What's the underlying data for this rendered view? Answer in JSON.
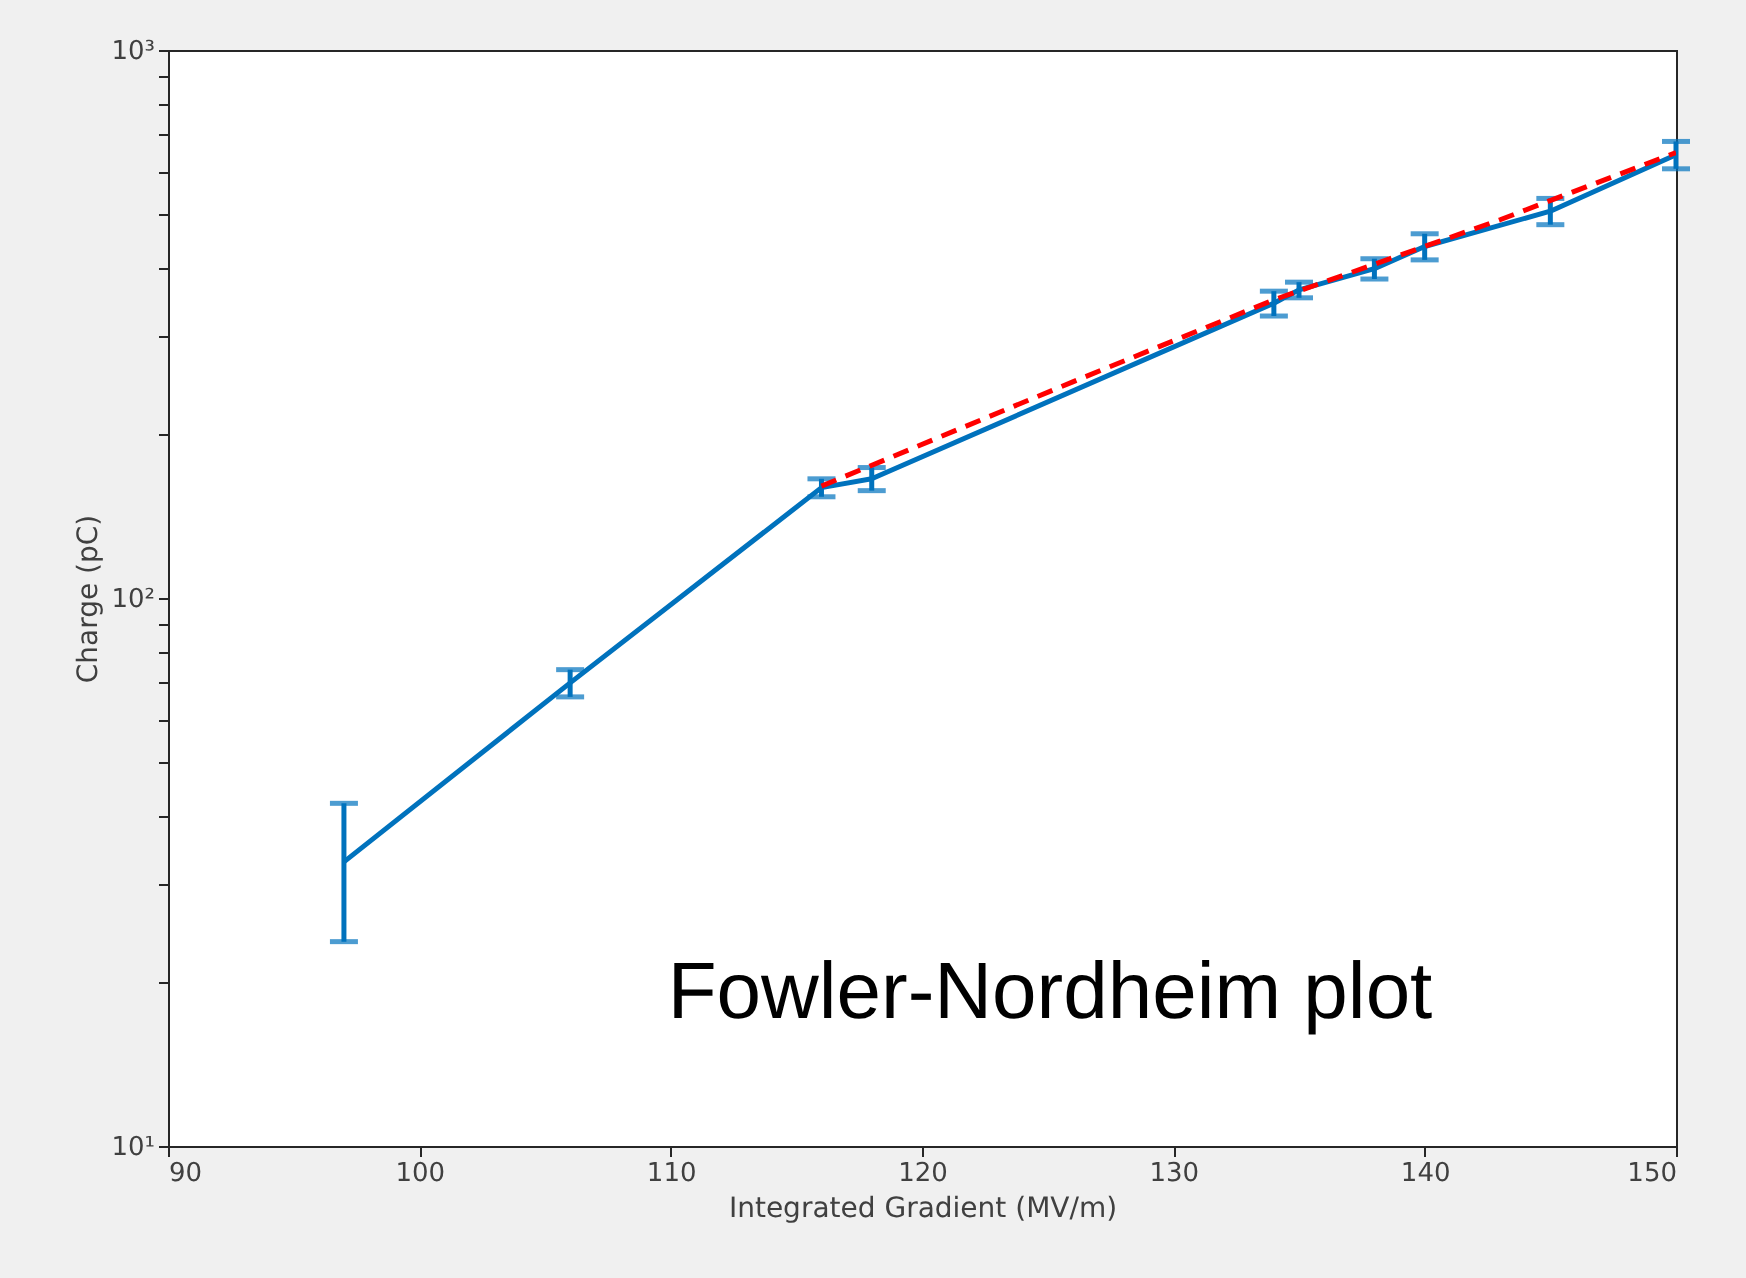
{
  "chart_data": {
    "type": "line",
    "xlabel": "Integrated Gradient (MV/m)",
    "ylabel": "Charge (pC)",
    "log": "y",
    "grid": false,
    "marker": "none",
    "xlim": [
      90,
      150
    ],
    "xticks": [
      90,
      100,
      110,
      120,
      130,
      140,
      150
    ],
    "ylim": [
      10,
      1000
    ],
    "yticks": [
      {
        "value": 10,
        "label": "10¹"
      },
      {
        "value": 20,
        "label": null
      },
      {
        "value": 30,
        "label": null
      },
      {
        "value": 40,
        "label": null
      },
      {
        "value": 50,
        "label": null
      },
      {
        "value": 60,
        "label": null
      },
      {
        "value": 70,
        "label": null
      },
      {
        "value": 80,
        "label": null
      },
      {
        "value": 90,
        "label": null
      },
      {
        "value": 100,
        "label": "10²"
      },
      {
        "value": 200,
        "label": null
      },
      {
        "value": 300,
        "label": null
      },
      {
        "value": 400,
        "label": null
      },
      {
        "value": 500,
        "label": null
      },
      {
        "value": 600,
        "label": null
      },
      {
        "value": 700,
        "label": null
      },
      {
        "value": 800,
        "label": null
      },
      {
        "value": 900,
        "label": null
      },
      {
        "value": 1000,
        "label": "10³"
      }
    ],
    "series": [
      {
        "color": "#0072bd",
        "line_style": "solid",
        "x": [
          97,
          106,
          116,
          118,
          134,
          135,
          138,
          140,
          145,
          150
        ],
        "values": [
          33,
          70,
          159,
          165,
          345,
          365,
          399,
          438,
          508,
          644
        ],
        "errors": [
          [
            23.6,
            42.2
          ],
          4,
          6,
          8,
          18,
          12,
          17,
          24,
          28,
          37
        ]
      },
      {
        "color": "#ff0000",
        "line_style": "dashed",
        "x": [
          116,
          126,
          134,
          143,
          150
        ],
        "values": [
          160,
          248,
          350,
          490,
          650
        ]
      }
    ],
    "annotations": [
      "Fowler-Nordheim plot"
    ]
  }
}
